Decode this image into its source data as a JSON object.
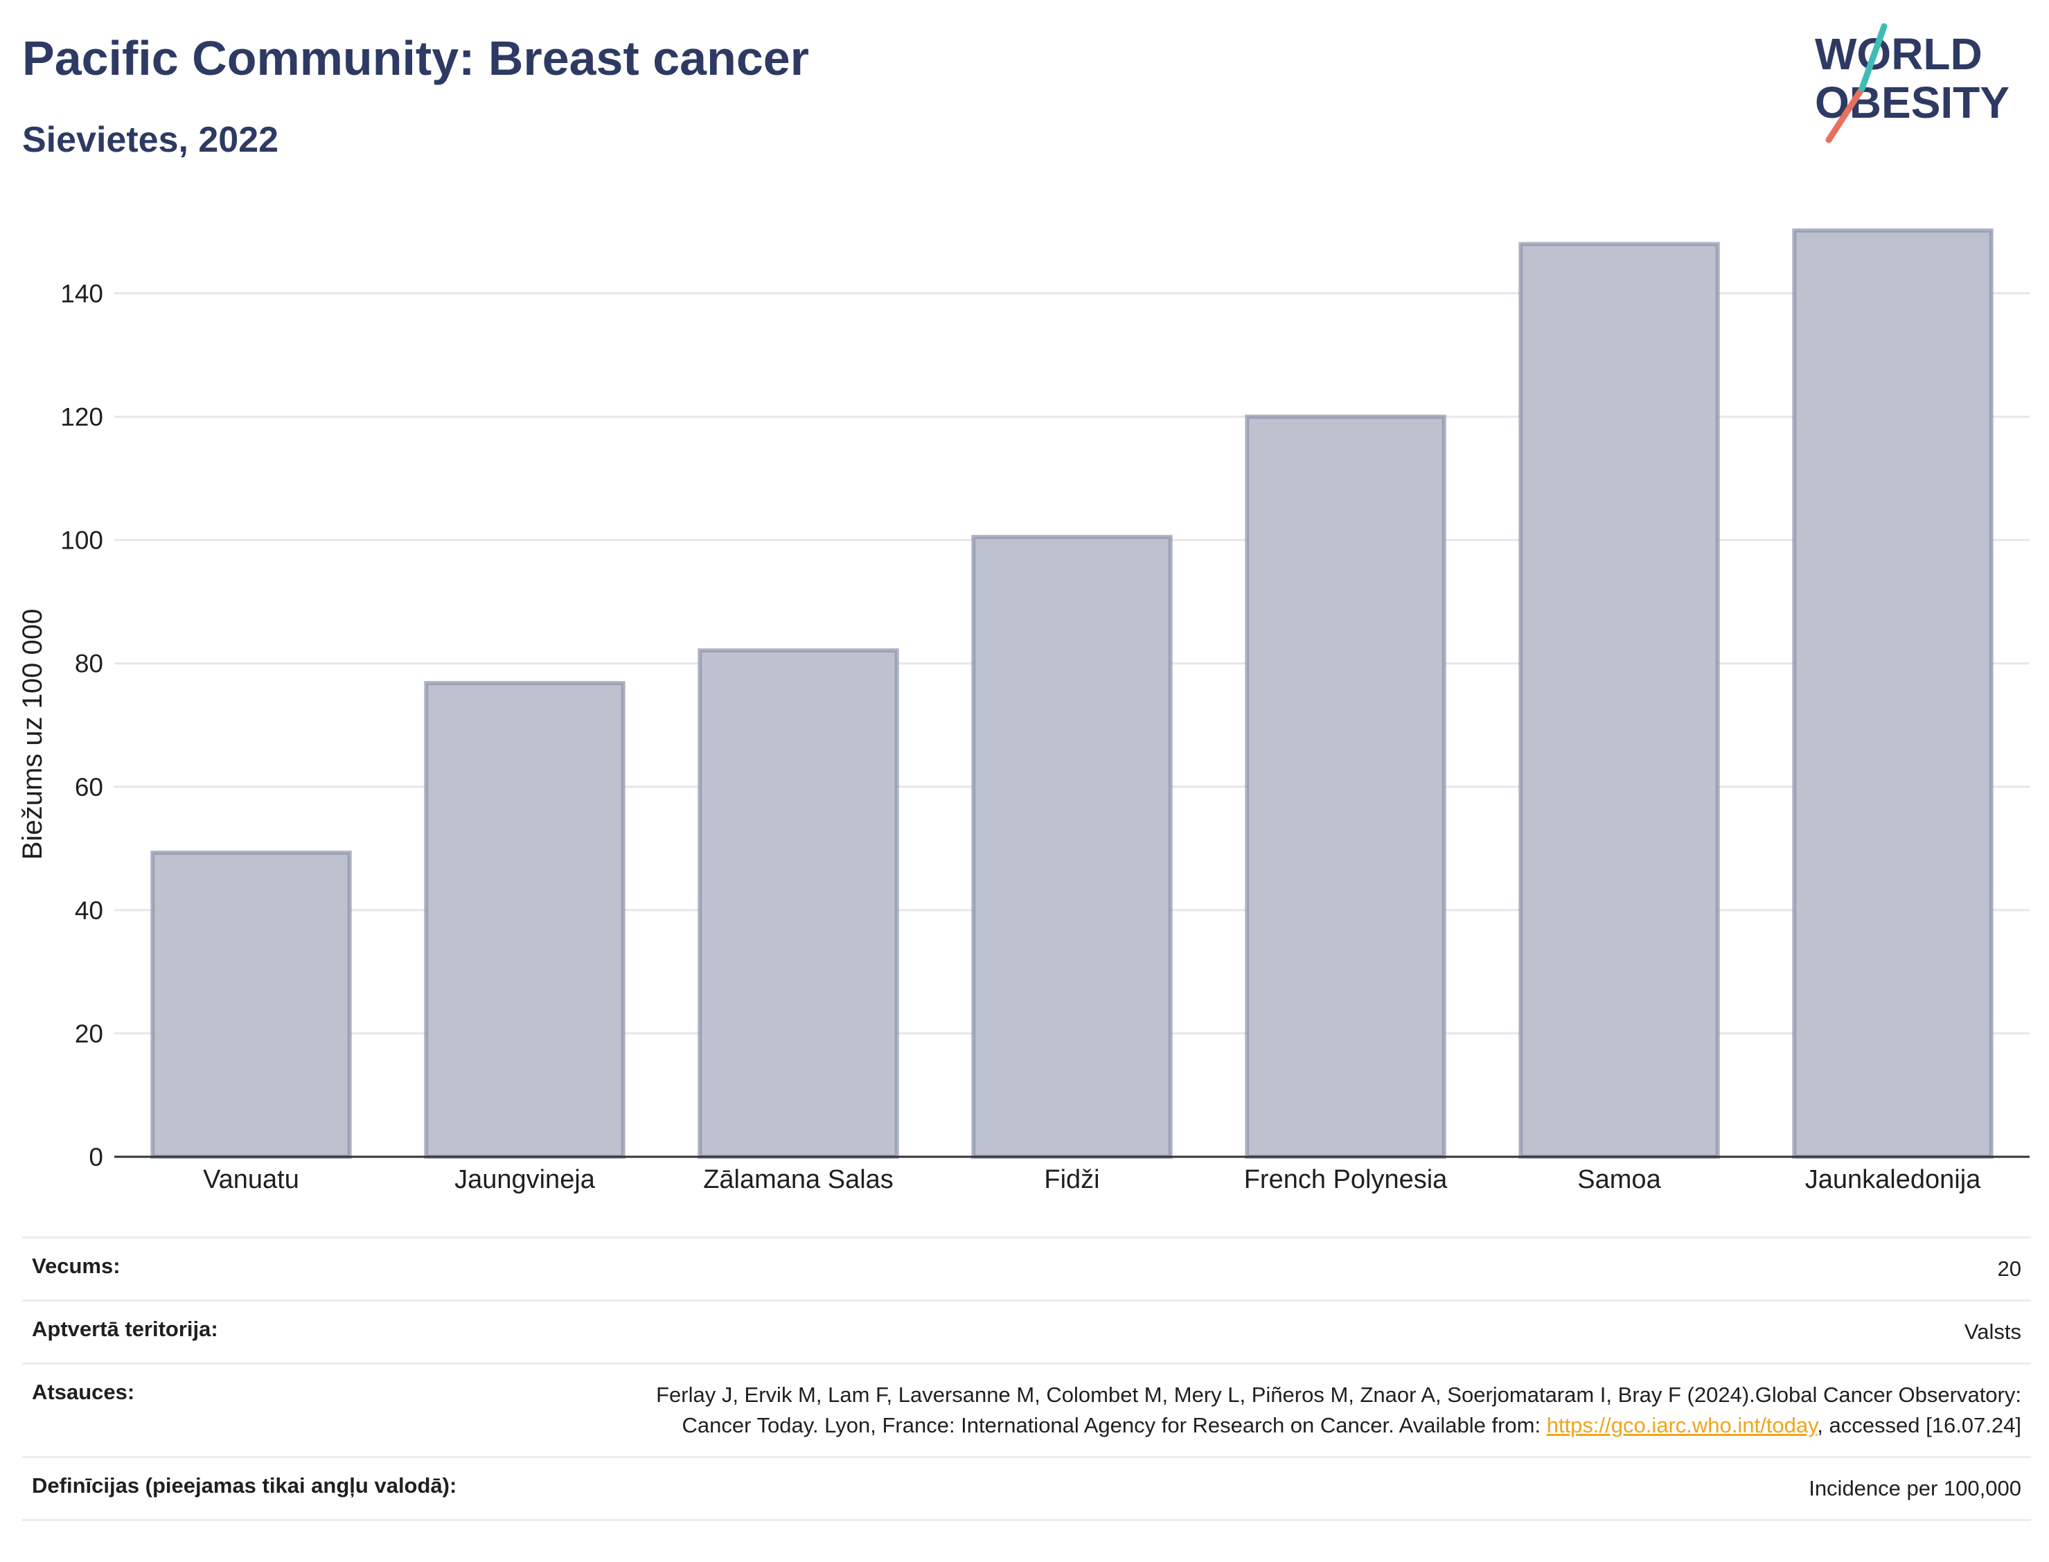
{
  "header": {
    "title": "Pacific Community: Breast cancer",
    "subtitle": "Sievietes, 2022"
  },
  "logo": {
    "line1": "WORLD",
    "line2": "OBESITY",
    "colors": {
      "text": "#2d3a63",
      "accent_red": "#e8705f",
      "accent_teal": "#3dbdb6"
    }
  },
  "chart_data": {
    "type": "bar",
    "title": "Pacific Community: Breast cancer",
    "subtitle": "Sievietes, 2022",
    "xlabel": "",
    "ylabel": "Biežums uz 100 000",
    "categories": [
      "Vanuatu",
      "Jaungvineja",
      "Zālamana Salas",
      "Fidži",
      "French Polynesia",
      "Samoa",
      "Jaunkaledonija"
    ],
    "values": [
      49.3,
      76.8,
      82.1,
      100.5,
      120.0,
      148.0,
      150.2
    ],
    "ylim": [
      0,
      155
    ],
    "yticks": [
      0,
      20,
      40,
      60,
      80,
      100,
      120,
      140
    ],
    "grid": true,
    "bar_fill": "#bec2cf",
    "bar_stroke": "#8c93ab"
  },
  "info": {
    "rows": [
      {
        "label": "Vecums:",
        "value": "20"
      },
      {
        "label": "Aptvertā teritorija:",
        "value": "Valsts"
      },
      {
        "label": "Atsauces:",
        "value_pre": "Ferlay J, Ervik M, Lam F, Laversanne M, Colombet M, Mery L, Piñeros M, Znaor A, Soerjomataram I, Bray F (2024).Global Cancer Observatory: Cancer Today. Lyon, France: International Agency for Research on Cancer. Available from: ",
        "value_link": "https://gco.iarc.who.int/today",
        "value_post": ", accessed [16.07.24]"
      },
      {
        "label": "Definīcijas (pieejamas tikai angļu valodā):",
        "value": "Incidence per 100,000"
      }
    ]
  }
}
